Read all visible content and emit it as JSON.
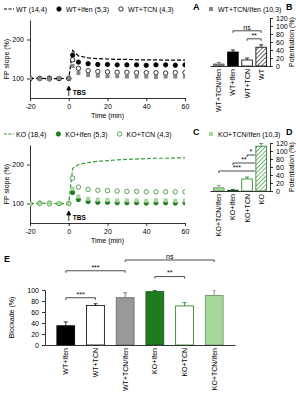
{
  "chart_data": [
    {
      "type": "line",
      "title": "A",
      "x_label": "Time (min)",
      "y_label": "FP slope (%)",
      "x": [
        -20,
        -15,
        -10,
        -5,
        0,
        2,
        5,
        10,
        15,
        20,
        25,
        30,
        35,
        40,
        45,
        50,
        55,
        60
      ],
      "xlim": [
        -20,
        60
      ],
      "xticks": [
        -20,
        0,
        20,
        40,
        60
      ],
      "ylim": [
        50,
        250
      ],
      "yticks": [
        100,
        200
      ],
      "series": [
        {
          "name": "WT (14,4)",
          "color": "#000000",
          "marker": "none",
          "line_style": "dashed",
          "values": [
            100,
            101,
            99,
            100,
            100,
            172,
            158,
            153,
            151,
            150,
            149,
            149,
            148,
            148,
            148,
            147,
            147,
            147
          ]
        },
        {
          "name": "WT+Ifen (5,3)",
          "color": "#000000",
          "marker": "circle",
          "line_style": "none",
          "values": [
            99,
            100,
            101,
            100,
            100,
            160,
            142,
            138,
            136,
            136,
            135,
            135,
            135,
            134,
            135,
            135,
            134,
            135
          ]
        },
        {
          "name": "WT+TCN (4,3)",
          "color": "#000000",
          "marker": "open-circle",
          "line_style": "none",
          "values": [
            101,
            100,
            99,
            100,
            100,
            148,
            126,
            120,
            118,
            117,
            116,
            116,
            115,
            115,
            115,
            114,
            115,
            115
          ]
        },
        {
          "name": "WT+TCN/Ifen (10,3)",
          "color": "#888888",
          "marker": "square",
          "line_style": "none",
          "values": [
            100,
            99,
            100,
            101,
            100,
            132,
            114,
            109,
            107,
            106,
            106,
            105,
            105,
            105,
            104,
            105,
            105,
            105
          ]
        }
      ],
      "annotations": [
        {
          "text": "TBS",
          "x": 0
        }
      ]
    },
    {
      "type": "bar",
      "title": "B",
      "y_label": "Potentiation (%)",
      "categories": [
        "WT+TCN/Ifen",
        "WT+Ifen",
        "WT+TCN",
        "WT"
      ],
      "values": [
        5,
        35,
        15,
        47
      ],
      "errors": [
        4,
        5,
        5,
        6
      ],
      "colors": [
        "#888888",
        "#000000",
        "#ffffff",
        "#ffffff"
      ],
      "ylim": [
        0,
        120
      ],
      "yticks": [
        0,
        20,
        40,
        60,
        80,
        100,
        120
      ],
      "annotations": [
        {
          "text": "**",
          "from": 2,
          "to": 3
        },
        {
          "text": "ns",
          "from": 1,
          "to": 3
        }
      ]
    },
    {
      "type": "line",
      "title": "C",
      "x_label": "Time (min)",
      "y_label": "FP slope (%)",
      "x": [
        -20,
        -15,
        -10,
        -5,
        0,
        2,
        5,
        10,
        15,
        20,
        25,
        30,
        35,
        40,
        45,
        50,
        55,
        60
      ],
      "xlim": [
        -20,
        60
      ],
      "xticks": [
        -20,
        0,
        20,
        40,
        60
      ],
      "ylim": [
        50,
        250
      ],
      "yticks": [
        100,
        200
      ],
      "series": [
        {
          "name": "KO (18,4)",
          "color": "#3c9e3c",
          "marker": "none",
          "line_style": "dashed",
          "values": [
            100,
            100,
            101,
            99,
            100,
            190,
            200,
            205,
            208,
            210,
            212,
            213,
            214,
            215,
            216,
            216,
            217,
            217
          ]
        },
        {
          "name": "KO+Ifen (5,3)",
          "color": "#1e7b1e",
          "marker": "circle",
          "line_style": "none",
          "values": [
            100,
            101,
            99,
            100,
            100,
            128,
            110,
            105,
            103,
            103,
            102,
            102,
            102,
            101,
            102,
            102,
            101,
            102
          ]
        },
        {
          "name": "KO+TCN (4,3)",
          "color": "#2e8b2e",
          "marker": "open-circle",
          "line_style": "none",
          "values": [
            99,
            100,
            101,
            100,
            100,
            165,
            142,
            136,
            134,
            133,
            132,
            131,
            131,
            130,
            130,
            130,
            130,
            130
          ]
        },
        {
          "name": "KO+TCN/Ifen (10,3)",
          "color": "#a6d89a",
          "marker": "square",
          "line_style": "none",
          "values": [
            100,
            100,
            99,
            101,
            100,
            138,
            118,
            112,
            110,
            109,
            108,
            108,
            108,
            107,
            108,
            108,
            107,
            108
          ]
        }
      ],
      "annotations": [
        {
          "text": "TBS",
          "x": 0
        }
      ]
    },
    {
      "type": "bar",
      "title": "D",
      "y_label": "Potentiation (%)",
      "categories": [
        "KO+TCN/Ifen",
        "KO+Ifen",
        "KO+TCN",
        "KO"
      ],
      "values": [
        8,
        2,
        30,
        112
      ],
      "errors": [
        6,
        2,
        5,
        7
      ],
      "colors": [
        "#a6d89a",
        "#1e7b1e",
        "#ffffff",
        "#ffffff"
      ],
      "ylim": [
        0,
        120
      ],
      "yticks": [
        0,
        20,
        40,
        60,
        80,
        100,
        120
      ],
      "annotations": [
        {
          "text": "***",
          "from": 0,
          "to": 3
        },
        {
          "text": "**",
          "from": 1,
          "to": 3
        },
        {
          "text": "*",
          "from": 2,
          "to": 3
        }
      ]
    },
    {
      "type": "bar",
      "title": "E",
      "y_label": "Blockade (%)",
      "categories": [
        "WT+Ifen",
        "WT+TCN",
        "WT+TCN/Ifen",
        "KO+Ifen",
        "KO+TCN",
        "KO+TCN/Ifen"
      ],
      "values": [
        35,
        72,
        86,
        97,
        71,
        90
      ],
      "errors": [
        7,
        3,
        9,
        2,
        6,
        10
      ],
      "colors": [
        "#000000",
        "#ffffff",
        "#999999",
        "#1e7b1e",
        "#ffffff",
        "#a6d89a"
      ],
      "ylim": [
        0,
        100
      ],
      "yticks": [
        0,
        20,
        40,
        60,
        80,
        100
      ],
      "annotations": [
        {
          "text": "***",
          "from": 0,
          "to": 1
        },
        {
          "text": "**",
          "from": 3,
          "to": 4
        },
        {
          "text": "***",
          "from": 0,
          "to": 2
        },
        {
          "text": "ns",
          "from": 2,
          "to": 5
        }
      ]
    }
  ]
}
